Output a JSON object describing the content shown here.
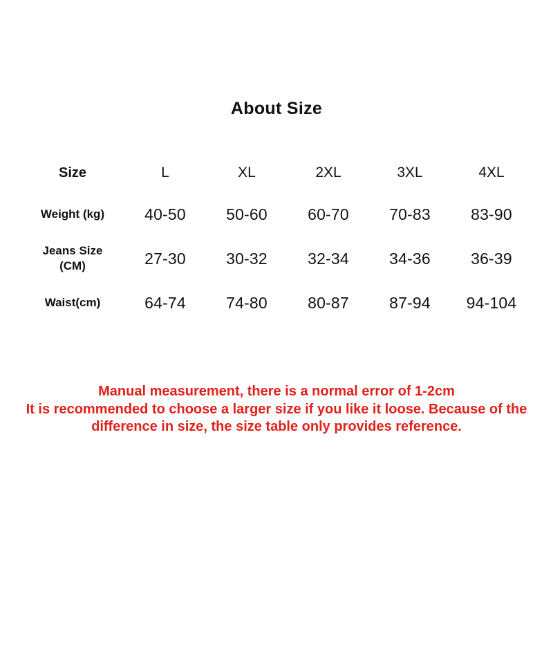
{
  "title": "About Size",
  "colors": {
    "text": "#111111",
    "accent_red": "#e0211a",
    "background": "#ffffff"
  },
  "chart_data": {
    "type": "table",
    "title": "About Size",
    "columns": [
      "Size",
      "L",
      "XL",
      "2XL",
      "3XL",
      "4XL"
    ],
    "rows": [
      {
        "label": "Weight (kg)",
        "values": [
          "40-50",
          "50-60",
          "60-70",
          "70-83",
          "83-90"
        ]
      },
      {
        "label": "Jeans Size (CM)",
        "values": [
          "27-30",
          "30-32",
          "32-34",
          "34-36",
          "36-39"
        ]
      },
      {
        "label": "Waist(cm)",
        "values": [
          "64-74",
          "74-80",
          "80-87",
          "87-94",
          "94-104"
        ]
      }
    ],
    "notes": [
      "Manual measurement, there is a normal error of 1-2cm",
      "It is recommended to choose a larger size if you like it loose. Because of the difference in size, the size table only provides reference."
    ],
    "notes_color": "#e0211a",
    "layout": {
      "grid": false,
      "header_position": "top-row"
    }
  }
}
